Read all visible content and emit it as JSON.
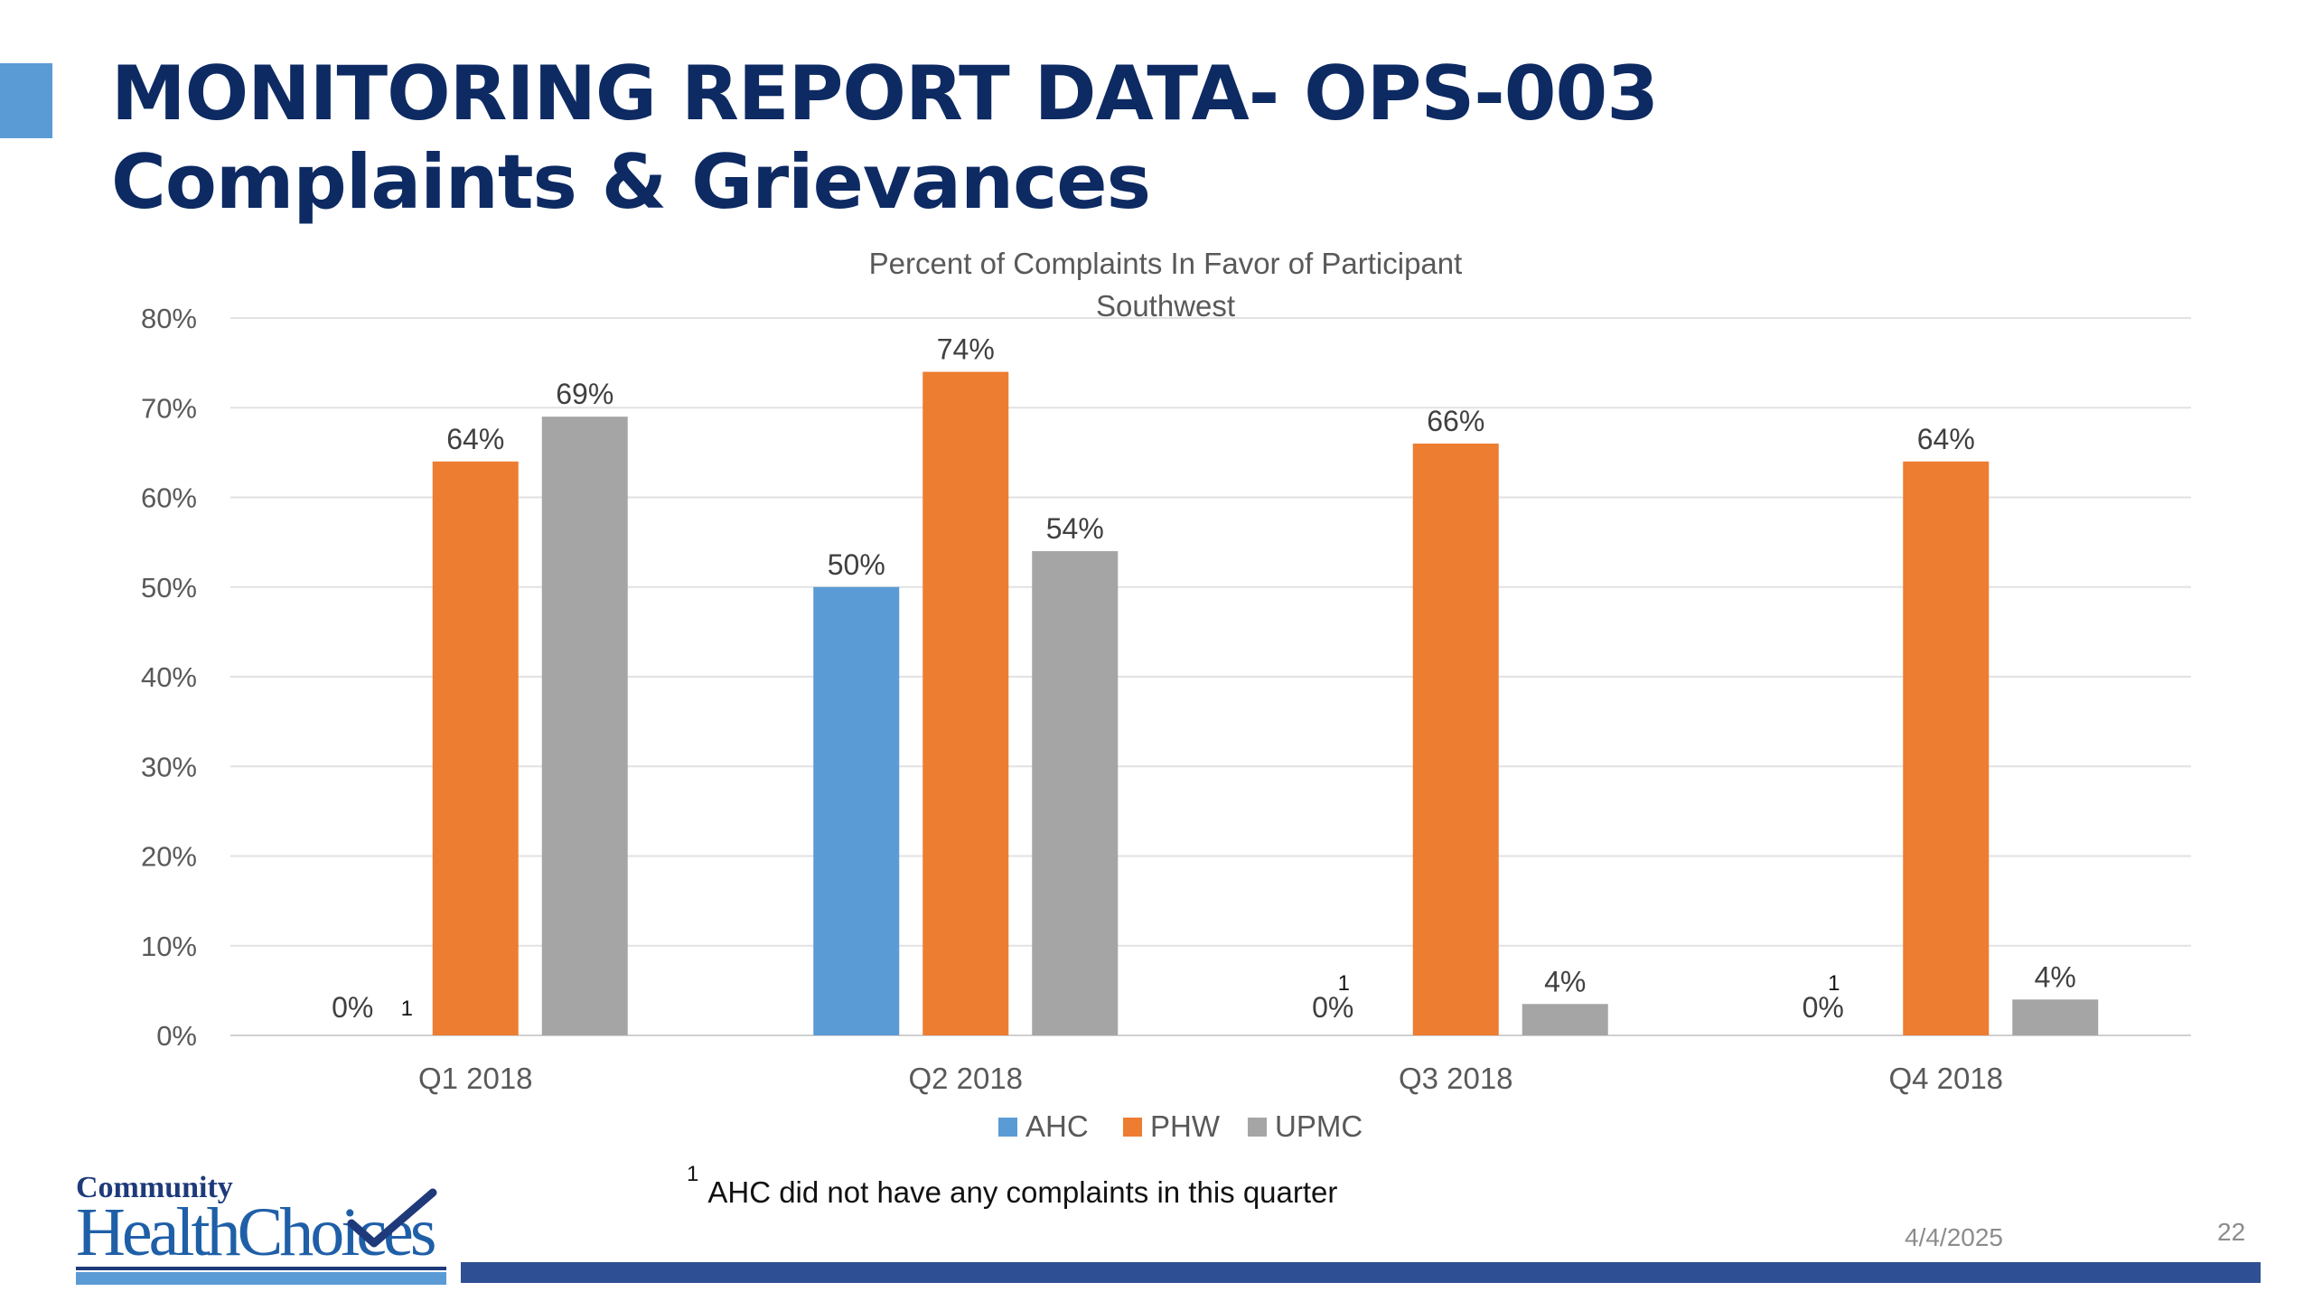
{
  "slide": {
    "title_line1": "MONITORING REPORT DATA- OPS-003",
    "title_line2": "Complaints & Grievances",
    "footnote_marker": "1",
    "footnote_text": "AHC did not have any complaints in this quarter",
    "date": "4/4/2025",
    "page_number": "22",
    "accent_color": "#5b9bd5",
    "title_color": "#0d2a63",
    "bar_color": "#2e4f93"
  },
  "logo": {
    "line1": "Community",
    "line2": "HealthChoices"
  },
  "chart_data": {
    "type": "bar",
    "title": "Percent of Complaints In Favor of Participant",
    "subtitle": "Southwest",
    "xlabel": "",
    "ylabel": "",
    "categories": [
      "Q1 2018",
      "Q2 2018",
      "Q3 2018",
      "Q4 2018"
    ],
    "series": [
      {
        "name": "AHC",
        "color": "#5b9bd5",
        "values": [
          0,
          50,
          0,
          0
        ],
        "labels": [
          "0%",
          "50%",
          "0%",
          "0%"
        ]
      },
      {
        "name": "PHW",
        "color": "#ed7d31",
        "values": [
          64,
          74,
          66,
          64
        ],
        "labels": [
          "64%",
          "74%",
          "66%",
          "64%"
        ]
      },
      {
        "name": "UPMC",
        "color": "#a5a5a5",
        "values": [
          69,
          54,
          3.5,
          4
        ],
        "labels": [
          "69%",
          "54%",
          "4%",
          "4%"
        ]
      }
    ],
    "footnote_markers": [
      {
        "category": "Q1 2018",
        "text": "1"
      },
      {
        "category": "Q3 2018",
        "text": "1"
      },
      {
        "category": "Q4 2018",
        "text": "1"
      }
    ],
    "ylim": [
      0,
      80
    ],
    "yticks": [
      0,
      10,
      20,
      30,
      40,
      50,
      60,
      70,
      80
    ],
    "ytick_labels": [
      "0%",
      "10%",
      "20%",
      "30%",
      "40%",
      "50%",
      "60%",
      "70%",
      "80%"
    ],
    "grid": true,
    "legend_position": "bottom"
  }
}
